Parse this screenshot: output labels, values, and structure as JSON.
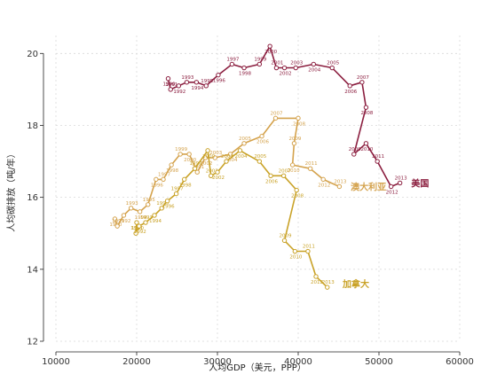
{
  "chart_data": {
    "type": "line",
    "xlabel": "人均GDP（美元，PPP）",
    "ylabel": "人均碳排放（吨/年）",
    "xlim": [
      10000,
      60000
    ],
    "ylim": [
      12,
      20.5
    ],
    "xticks": [
      10000,
      20000,
      30000,
      40000,
      50000,
      60000
    ],
    "yticks": [
      12,
      14,
      16,
      18,
      20
    ],
    "grid": true,
    "series": [
      {
        "name": "美国",
        "color": "#8b1e3f",
        "label_at": {
          "x": 54000,
          "y": 16.4
        },
        "points": [
          {
            "year": "1990",
            "x": 23900,
            "y": 19.3
          },
          {
            "year": "1991",
            "x": 24200,
            "y": 19.0
          },
          {
            "year": "1992",
            "x": 25200,
            "y": 19.1
          },
          {
            "year": "1993",
            "x": 26200,
            "y": 19.2
          },
          {
            "year": "1994",
            "x": 27400,
            "y": 19.2
          },
          {
            "year": "1995",
            "x": 28600,
            "y": 19.1
          },
          {
            "year": "1996",
            "x": 30100,
            "y": 19.4
          },
          {
            "year": "1997",
            "x": 31800,
            "y": 19.7
          },
          {
            "year": "1998",
            "x": 33300,
            "y": 19.6
          },
          {
            "year": "1999",
            "x": 35200,
            "y": 19.7
          },
          {
            "year": "2000",
            "x": 36500,
            "y": 20.2
          },
          {
            "year": "2001",
            "x": 37300,
            "y": 19.6
          },
          {
            "year": "2002",
            "x": 38300,
            "y": 19.6
          },
          {
            "year": "2003",
            "x": 39700,
            "y": 19.6
          },
          {
            "year": "2004",
            "x": 41900,
            "y": 19.7
          },
          {
            "year": "2005",
            "x": 44200,
            "y": 19.6
          },
          {
            "year": "2006",
            "x": 46400,
            "y": 19.1
          },
          {
            "year": "2007",
            "x": 47900,
            "y": 19.2
          },
          {
            "year": "2008",
            "x": 48400,
            "y": 18.5
          },
          {
            "year": "2009",
            "x": 46900,
            "y": 17.2
          },
          {
            "year": "2010",
            "x": 48400,
            "y": 17.5
          },
          {
            "year": "2011",
            "x": 49800,
            "y": 17.0
          },
          {
            "year": "2012",
            "x": 51500,
            "y": 16.3
          },
          {
            "year": "2013",
            "x": 52600,
            "y": 16.4
          }
        ]
      },
      {
        "name": "澳大利亚",
        "color": "#d4a24c",
        "label_at": {
          "x": 46500,
          "y": 16.3
        },
        "points": [
          {
            "year": "1990",
            "x": 17300,
            "y": 15.4
          },
          {
            "year": "1991",
            "x": 17600,
            "y": 15.2
          },
          {
            "year": "1992",
            "x": 18400,
            "y": 15.5
          },
          {
            "year": "1993",
            "x": 19300,
            "y": 15.7
          },
          {
            "year": "1994",
            "x": 20400,
            "y": 15.6
          },
          {
            "year": "1995",
            "x": 21400,
            "y": 15.8
          },
          {
            "year": "1996",
            "x": 22400,
            "y": 16.5
          },
          {
            "year": "1997",
            "x": 23300,
            "y": 16.5
          },
          {
            "year": "1998",
            "x": 24300,
            "y": 16.9
          },
          {
            "year": "1999",
            "x": 25400,
            "y": 17.2
          },
          {
            "year": "2000",
            "x": 26500,
            "y": 17.2
          },
          {
            "year": "2001",
            "x": 27500,
            "y": 16.7
          },
          {
            "year": "2002",
            "x": 28500,
            "y": 17.1
          },
          {
            "year": "2003",
            "x": 29700,
            "y": 17.1
          },
          {
            "year": "2004",
            "x": 31600,
            "y": 17.2
          },
          {
            "year": "2005",
            "x": 33300,
            "y": 17.5
          },
          {
            "year": "2006",
            "x": 35500,
            "y": 17.7
          },
          {
            "year": "2007",
            "x": 37200,
            "y": 18.2
          },
          {
            "year": "2008",
            "x": 40000,
            "y": 18.2
          },
          {
            "year": "2009",
            "x": 39500,
            "y": 17.5
          },
          {
            "year": "2010",
            "x": 39300,
            "y": 16.9
          },
          {
            "year": "2011",
            "x": 41500,
            "y": 16.8
          },
          {
            "year": "2012",
            "x": 43100,
            "y": 16.5
          },
          {
            "year": "2013",
            "x": 45100,
            "y": 16.3
          }
        ]
      },
      {
        "name": "加拿大",
        "color": "#c9a227",
        "label_at": {
          "x": 45500,
          "y": 13.6
        },
        "points": [
          {
            "year": "1990",
            "x": 20000,
            "y": 15.3
          },
          {
            "year": "1991",
            "x": 19900,
            "y": 15.0
          },
          {
            "year": "1992",
            "x": 20300,
            "y": 15.2
          },
          {
            "year": "1993",
            "x": 21100,
            "y": 15.3
          },
          {
            "year": "1994",
            "x": 22200,
            "y": 15.5
          },
          {
            "year": "1995",
            "x": 23100,
            "y": 15.7
          },
          {
            "year": "1996",
            "x": 23800,
            "y": 15.9
          },
          {
            "year": "1997",
            "x": 24900,
            "y": 16.1
          },
          {
            "year": "1998",
            "x": 25900,
            "y": 16.5
          },
          {
            "year": "1999",
            "x": 27200,
            "y": 16.8
          },
          {
            "year": "2000",
            "x": 28800,
            "y": 17.3
          },
          {
            "year": "2001",
            "x": 29200,
            "y": 16.6
          },
          {
            "year": "2002",
            "x": 30000,
            "y": 16.7
          },
          {
            "year": "2003",
            "x": 31100,
            "y": 17.0
          },
          {
            "year": "2004",
            "x": 32800,
            "y": 17.3
          },
          {
            "year": "2005",
            "x": 35200,
            "y": 17.0
          },
          {
            "year": "2006",
            "x": 36600,
            "y": 16.6
          },
          {
            "year": "2007",
            "x": 38200,
            "y": 16.6
          },
          {
            "year": "2008",
            "x": 39800,
            "y": 16.2
          },
          {
            "year": "2009",
            "x": 38300,
            "y": 14.8
          },
          {
            "year": "2010",
            "x": 39600,
            "y": 14.5
          },
          {
            "year": "2011",
            "x": 41200,
            "y": 14.5
          },
          {
            "year": "2012",
            "x": 42200,
            "y": 13.8
          },
          {
            "year": "2013",
            "x": 43600,
            "y": 13.5
          }
        ]
      }
    ]
  }
}
